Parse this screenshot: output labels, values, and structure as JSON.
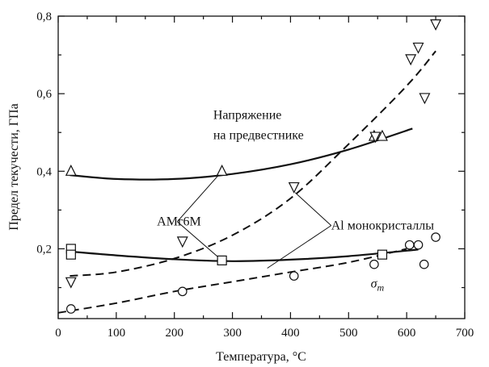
{
  "chart_data": {
    "type": "scatter",
    "xlabel": "Температура, °C",
    "ylabel": "Предел текучести, ГПа",
    "xlim": [
      0,
      700
    ],
    "ylim": [
      0.02,
      0.8
    ],
    "x_ticks": [
      0,
      100,
      200,
      300,
      400,
      500,
      600,
      700
    ],
    "x_tick_labels": [
      "0",
      "100",
      "200",
      "300",
      "400",
      "500",
      "600",
      "700"
    ],
    "y_ticks": [
      0.2,
      0.4,
      0.6,
      0.8
    ],
    "y_tick_labels": [
      "0,2",
      "0,4",
      "0,6",
      "0,8"
    ],
    "minor_tick_step_x": 50,
    "minor_tick_step_y": 0.1,
    "grid": false,
    "series": [
      {
        "marker": "triangle-up",
        "points": [
          [
            22,
            0.4
          ],
          [
            282,
            0.4
          ],
          [
            544,
            0.49
          ],
          [
            558,
            0.49
          ]
        ],
        "fit": "solid",
        "fit_points": [
          [
            20,
            0.39
          ],
          [
            100,
            0.38
          ],
          [
            200,
            0.38
          ],
          [
            300,
            0.393
          ],
          [
            400,
            0.418
          ],
          [
            500,
            0.456
          ],
          [
            610,
            0.51
          ]
        ]
      },
      {
        "marker": "square",
        "points": [
          [
            22,
            0.2
          ],
          [
            22,
            0.185
          ],
          [
            282,
            0.17
          ],
          [
            558,
            0.185
          ]
        ],
        "fit": "solid",
        "fit_points": [
          [
            20,
            0.193
          ],
          [
            100,
            0.183
          ],
          [
            200,
            0.173
          ],
          [
            300,
            0.168
          ],
          [
            400,
            0.172
          ],
          [
            500,
            0.181
          ],
          [
            620,
            0.198
          ]
        ]
      },
      {
        "marker": "triangle-down",
        "points": [
          [
            22,
            0.115
          ],
          [
            214,
            0.22
          ],
          [
            406,
            0.36
          ],
          [
            546,
            0.49
          ],
          [
            607,
            0.69
          ],
          [
            620,
            0.72
          ],
          [
            631,
            0.59
          ],
          [
            650,
            0.78
          ]
        ],
        "fit": "dashed",
        "fit_points": [
          [
            20,
            0.13
          ],
          [
            100,
            0.14
          ],
          [
            200,
            0.175
          ],
          [
            300,
            0.235
          ],
          [
            400,
            0.33
          ],
          [
            500,
            0.47
          ],
          [
            600,
            0.62
          ],
          [
            650,
            0.71
          ]
        ]
      },
      {
        "marker": "circle",
        "points": [
          [
            22,
            0.045
          ],
          [
            214,
            0.09
          ],
          [
            406,
            0.13
          ],
          [
            544,
            0.16
          ],
          [
            605,
            0.21
          ],
          [
            620,
            0.21
          ],
          [
            630,
            0.16
          ],
          [
            650,
            0.23
          ]
        ],
        "fit": "dashed",
        "fit_points": [
          [
            0,
            0.035
          ],
          [
            100,
            0.06
          ],
          [
            200,
            0.09
          ],
          [
            300,
            0.115
          ],
          [
            400,
            0.14
          ],
          [
            500,
            0.165
          ],
          [
            600,
            0.2
          ]
        ]
      }
    ],
    "annotations": [
      {
        "id": "upper-curve-label",
        "lines": [
          "Напряжение",
          "на предвестнике"
        ],
        "x": 267,
        "y": 0.535,
        "line_gap": 0.052
      },
      {
        "id": "amg6m-label",
        "text": "АМг6М",
        "x": 170,
        "y": 0.26,
        "leaders_to": [
          [
            282,
            0.4
          ],
          [
            282,
            0.17
          ]
        ],
        "leader_from": [
          205,
          0.27
        ]
      },
      {
        "id": "al-monocrystals-label",
        "text": "Al монокристаллы",
        "x": 470,
        "y": 0.25,
        "leaders_to": [
          [
            408,
            0.345
          ],
          [
            360,
            0.15
          ]
        ],
        "leader_from": [
          470,
          0.26
        ]
      },
      {
        "id": "sigma-label",
        "text": "σ",
        "subscript": "т",
        "x": 538,
        "y": 0.1
      }
    ]
  }
}
